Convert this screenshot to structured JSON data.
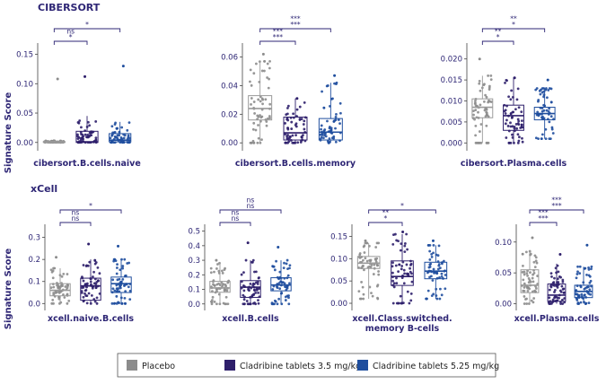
{
  "section_titles": {
    "top": "CIBERSORT",
    "bottom": "xCell"
  },
  "y_axis_label": "Signature Score",
  "legend": [
    {
      "label": "Placebo",
      "color": "#8c8c8c"
    },
    {
      "label": "Cladribine tablets 3.5 mg/kg",
      "color": "#2e1f6b"
    },
    {
      "label": "Cladribine tablets 5.25 mg/kg",
      "color": "#1f4e9e"
    }
  ],
  "colors": {
    "text": "#2e2675",
    "axis": "#444444",
    "grid_bracket": "#2e2675"
  },
  "chart_data": [
    {
      "type": "box",
      "title": "cibersort.B.cells.naive",
      "ylim": [
        -0.008,
        0.16
      ],
      "yticks": [
        0.0,
        0.05,
        0.1,
        0.15
      ],
      "ytick_labels": [
        "0.00",
        "0.05",
        "0.10",
        "0.15"
      ],
      "series": [
        {
          "name": "Placebo",
          "q1": 0.0,
          "median": 0.0,
          "q3": 0.0015,
          "whisker_low": 0.0,
          "whisker_high": 0.003,
          "min_point": 0.0,
          "max_point": 0.108
        },
        {
          "name": "Cladribine tablets 3.5 mg/kg",
          "q1": 0.0,
          "median": 0.001,
          "q3": 0.019,
          "whisker_low": 0.0,
          "whisker_high": 0.045,
          "min_point": 0.0,
          "max_point": 0.112
        },
        {
          "name": "Cladribine tablets 5.25 mg/kg",
          "q1": 0.001,
          "median": 0.004,
          "q3": 0.015,
          "whisker_low": 0.0,
          "whisker_high": 0.035,
          "min_point": 0.0,
          "max_point": 0.13
        }
      ],
      "brackets": [
        {
          "from": 0,
          "to": 1,
          "labels": [
            "ns",
            "*"
          ]
        },
        {
          "from": 0,
          "to": 2,
          "labels": [
            "*"
          ]
        }
      ]
    },
    {
      "type": "box",
      "title": "cibersort.B.cells.memory",
      "ylim": [
        -0.003,
        0.066
      ],
      "yticks": [
        0.0,
        0.02,
        0.04,
        0.06
      ],
      "ytick_labels": [
        "0.00",
        "0.02",
        "0.04",
        "0.06"
      ],
      "series": [
        {
          "name": "Placebo",
          "q1": 0.016,
          "median": 0.024,
          "q3": 0.033,
          "whisker_low": 0.0,
          "whisker_high": 0.057,
          "min_point": 0.0,
          "max_point": 0.062
        },
        {
          "name": "Cladribine tablets 3.5 mg/kg",
          "q1": 0.002,
          "median": 0.007,
          "q3": 0.018,
          "whisker_low": 0.0,
          "whisker_high": 0.031,
          "min_point": 0.0,
          "max_point": 0.031
        },
        {
          "name": "Cladribine tablets 5.25 mg/kg",
          "q1": 0.002,
          "median": 0.0075,
          "q3": 0.017,
          "whisker_low": 0.0,
          "whisker_high": 0.042,
          "min_point": 0.0,
          "max_point": 0.047
        }
      ],
      "brackets": [
        {
          "from": 0,
          "to": 1,
          "labels": [
            "***",
            "***"
          ]
        },
        {
          "from": 0,
          "to": 2,
          "labels": [
            "***",
            "***"
          ]
        }
      ]
    },
    {
      "type": "box",
      "title": "cibersort.Plasma.cells",
      "ylim": [
        -0.001,
        0.0225
      ],
      "yticks": [
        0.0,
        0.005,
        0.01,
        0.015,
        0.02
      ],
      "ytick_labels": [
        "0.000",
        "0.005",
        "0.010",
        "0.015",
        "0.020"
      ],
      "series": [
        {
          "name": "Placebo",
          "q1": 0.006,
          "median": 0.0085,
          "q3": 0.0105,
          "whisker_low": 0.0,
          "whisker_high": 0.016,
          "min_point": 0.0,
          "max_point": 0.02
        },
        {
          "name": "Cladribine tablets 3.5 mg/kg",
          "q1": 0.003,
          "median": 0.0065,
          "q3": 0.009,
          "whisker_low": 0.0,
          "whisker_high": 0.0155,
          "min_point": 0.0,
          "max_point": 0.0155
        },
        {
          "name": "Cladribine tablets 5.25 mg/kg",
          "q1": 0.0055,
          "median": 0.007,
          "q3": 0.0085,
          "whisker_low": 0.001,
          "whisker_high": 0.013,
          "min_point": 0.0,
          "max_point": 0.015
        }
      ],
      "brackets": [
        {
          "from": 0,
          "to": 1,
          "labels": [
            "**",
            "*"
          ]
        },
        {
          "from": 0,
          "to": 2,
          "labels": [
            "**",
            "*"
          ]
        }
      ]
    },
    {
      "type": "box",
      "title": "xcell.naive.B.cells",
      "ylim": [
        -0.015,
        0.335
      ],
      "yticks": [
        0.0,
        0.1,
        0.2,
        0.3
      ],
      "ytick_labels": [
        "0.0",
        "0.1",
        "0.2",
        "0.3"
      ],
      "series": [
        {
          "name": "Placebo",
          "q1": 0.035,
          "median": 0.06,
          "q3": 0.09,
          "whisker_low": 0.0,
          "whisker_high": 0.16,
          "min_point": 0.0,
          "max_point": 0.21
        },
        {
          "name": "Cladribine tablets 3.5 mg/kg",
          "q1": 0.015,
          "median": 0.08,
          "q3": 0.115,
          "whisker_low": 0.0,
          "whisker_high": 0.2,
          "min_point": 0.0,
          "max_point": 0.27
        },
        {
          "name": "Cladribine tablets 5.25 mg/kg",
          "q1": 0.05,
          "median": 0.09,
          "q3": 0.12,
          "whisker_low": 0.0,
          "whisker_high": 0.2,
          "min_point": 0.0,
          "max_point": 0.26
        }
      ],
      "brackets": [
        {
          "from": 0,
          "to": 1,
          "labels": [
            "ns",
            "ns"
          ]
        },
        {
          "from": 0,
          "to": 2,
          "labels": [
            "*"
          ]
        }
      ]
    },
    {
      "type": "box",
      "title": "xcell.B.cells",
      "ylim": [
        -0.02,
        0.51
      ],
      "yticks": [
        0.0,
        0.1,
        0.2,
        0.3,
        0.4,
        0.5
      ],
      "ytick_labels": [
        "0.0",
        "0.1",
        "0.2",
        "0.3",
        "0.4",
        "0.5"
      ],
      "series": [
        {
          "name": "Placebo",
          "q1": 0.08,
          "median": 0.11,
          "q3": 0.155,
          "whisker_low": 0.0,
          "whisker_high": 0.28,
          "min_point": 0.0,
          "max_point": 0.3
        },
        {
          "name": "Cladribine tablets 3.5 mg/kg",
          "q1": 0.045,
          "median": 0.115,
          "q3": 0.16,
          "whisker_low": 0.0,
          "whisker_high": 0.3,
          "min_point": 0.0,
          "max_point": 0.42
        },
        {
          "name": "Cladribine tablets 5.25 mg/kg",
          "q1": 0.09,
          "median": 0.13,
          "q3": 0.18,
          "whisker_low": 0.0,
          "whisker_high": 0.3,
          "min_point": 0.0,
          "max_point": 0.39
        }
      ],
      "brackets": [
        {
          "from": 0,
          "to": 1,
          "labels": [
            "ns",
            "ns"
          ]
        },
        {
          "from": 0,
          "to": 2,
          "labels": [
            "ns",
            "ns"
          ]
        }
      ]
    },
    {
      "type": "box",
      "title": "xcell.Class.switched.\nmemory B-cells",
      "ylim": [
        -0.008,
        0.165
      ],
      "yticks": [
        0.0,
        0.05,
        0.1,
        0.15
      ],
      "ytick_labels": [
        "0.00",
        "0.05",
        "0.10",
        "0.15"
      ],
      "series": [
        {
          "name": "Placebo",
          "q1": 0.078,
          "median": 0.09,
          "q3": 0.105,
          "whisker_low": 0.01,
          "whisker_high": 0.135,
          "min_point": 0.005,
          "max_point": 0.14
        },
        {
          "name": "Cladribine tablets 3.5 mg/kg",
          "q1": 0.04,
          "median": 0.06,
          "q3": 0.095,
          "whisker_low": 0.0,
          "whisker_high": 0.155,
          "min_point": 0.0,
          "max_point": 0.16
        },
        {
          "name": "Cladribine tablets 5.25 mg/kg",
          "q1": 0.055,
          "median": 0.072,
          "q3": 0.092,
          "whisker_low": 0.01,
          "whisker_high": 0.13,
          "min_point": 0.005,
          "max_point": 0.14
        }
      ],
      "brackets": [
        {
          "from": 0,
          "to": 1,
          "labels": [
            "**",
            "*"
          ]
        },
        {
          "from": 0,
          "to": 2,
          "labels": [
            "*"
          ]
        }
      ]
    },
    {
      "type": "box",
      "title": "xcell.Plasma.cells",
      "ylim": [
        -0.005,
        0.12
      ],
      "yticks": [
        0.0,
        0.05,
        0.1
      ],
      "ytick_labels": [
        "0.00",
        "0.05",
        "0.10"
      ],
      "series": [
        {
          "name": "Placebo",
          "q1": 0.018,
          "median": 0.03,
          "q3": 0.055,
          "whisker_low": 0.0,
          "whisker_high": 0.085,
          "min_point": 0.0,
          "max_point": 0.107
        },
        {
          "name": "Cladribine tablets 3.5 mg/kg",
          "q1": 0.004,
          "median": 0.014,
          "q3": 0.032,
          "whisker_low": 0.0,
          "whisker_high": 0.065,
          "min_point": 0.0,
          "max_point": 0.08
        },
        {
          "name": "Cladribine tablets 5.25 mg/kg",
          "q1": 0.01,
          "median": 0.02,
          "q3": 0.03,
          "whisker_low": 0.0,
          "whisker_high": 0.06,
          "min_point": 0.0,
          "max_point": 0.095
        }
      ],
      "brackets": [
        {
          "from": 0,
          "to": 1,
          "labels": [
            "***",
            "***"
          ]
        },
        {
          "from": 0,
          "to": 2,
          "labels": [
            "***",
            "***"
          ]
        }
      ]
    }
  ]
}
